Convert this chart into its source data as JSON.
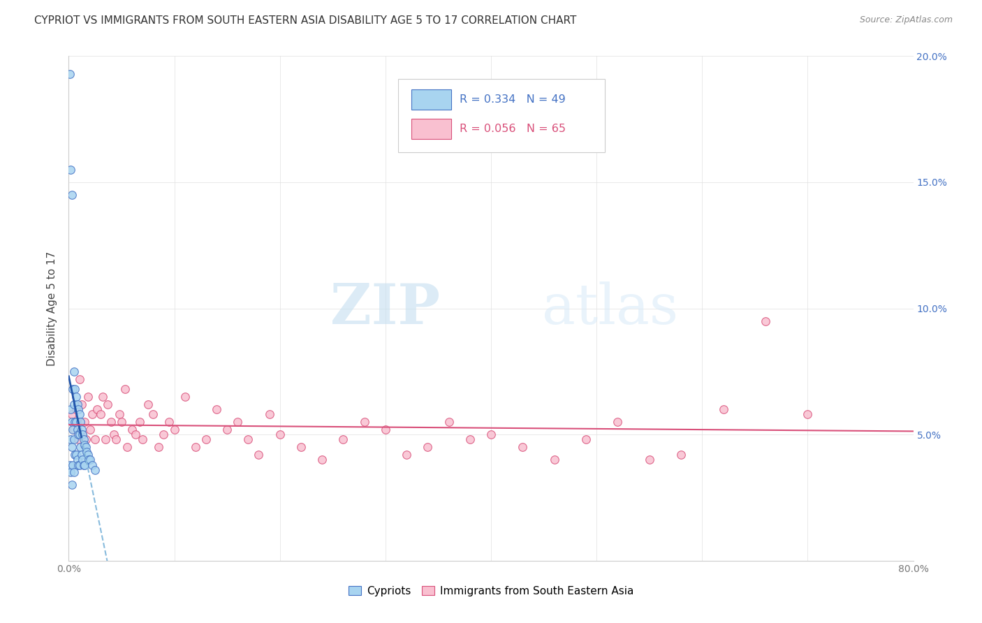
{
  "title": "CYPRIOT VS IMMIGRANTS FROM SOUTH EASTERN ASIA DISABILITY AGE 5 TO 17 CORRELATION CHART",
  "source": "Source: ZipAtlas.com",
  "ylabel": "Disability Age 5 to 17",
  "xlim": [
    0,
    0.8
  ],
  "ylim": [
    0,
    0.2
  ],
  "yticks": [
    0.0,
    0.05,
    0.1,
    0.15,
    0.2
  ],
  "ytick_labels_right": [
    "",
    "5.0%",
    "10.0%",
    "15.0%",
    "20.0%"
  ],
  "blue_R": 0.334,
  "blue_N": 49,
  "pink_R": 0.056,
  "pink_N": 65,
  "blue_color": "#a8d4f0",
  "blue_edge_color": "#4472c4",
  "blue_line_color": "#2255aa",
  "blue_dash_color": "#88bbdd",
  "pink_color": "#f9c0d0",
  "pink_edge_color": "#d9507a",
  "pink_line_color": "#d9507a",
  "watermark_zip": "ZIP",
  "watermark_atlas": "atlas",
  "blue_scatter_x": [
    0.001,
    0.001,
    0.002,
    0.002,
    0.002,
    0.002,
    0.003,
    0.003,
    0.003,
    0.003,
    0.004,
    0.004,
    0.004,
    0.005,
    0.005,
    0.005,
    0.005,
    0.006,
    0.006,
    0.006,
    0.007,
    0.007,
    0.007,
    0.008,
    0.008,
    0.008,
    0.009,
    0.009,
    0.009,
    0.01,
    0.01,
    0.01,
    0.011,
    0.011,
    0.012,
    0.012,
    0.013,
    0.013,
    0.014,
    0.014,
    0.015,
    0.015,
    0.016,
    0.017,
    0.018,
    0.019,
    0.02,
    0.022,
    0.025
  ],
  "blue_scatter_y": [
    0.193,
    0.038,
    0.155,
    0.06,
    0.048,
    0.035,
    0.145,
    0.055,
    0.045,
    0.03,
    0.068,
    0.052,
    0.038,
    0.075,
    0.062,
    0.048,
    0.035,
    0.068,
    0.055,
    0.042,
    0.065,
    0.055,
    0.042,
    0.062,
    0.052,
    0.04,
    0.06,
    0.05,
    0.038,
    0.058,
    0.05,
    0.038,
    0.055,
    0.045,
    0.052,
    0.042,
    0.05,
    0.04,
    0.048,
    0.038,
    0.046,
    0.038,
    0.045,
    0.043,
    0.042,
    0.04,
    0.04,
    0.038,
    0.036
  ],
  "pink_scatter_x": [
    0.003,
    0.005,
    0.007,
    0.008,
    0.009,
    0.01,
    0.012,
    0.013,
    0.015,
    0.016,
    0.018,
    0.02,
    0.022,
    0.025,
    0.027,
    0.03,
    0.032,
    0.035,
    0.037,
    0.04,
    0.043,
    0.045,
    0.048,
    0.05,
    0.053,
    0.055,
    0.06,
    0.063,
    0.067,
    0.07,
    0.075,
    0.08,
    0.085,
    0.09,
    0.095,
    0.1,
    0.11,
    0.12,
    0.13,
    0.14,
    0.15,
    0.16,
    0.17,
    0.18,
    0.19,
    0.2,
    0.22,
    0.24,
    0.26,
    0.28,
    0.3,
    0.32,
    0.34,
    0.36,
    0.38,
    0.4,
    0.43,
    0.46,
    0.49,
    0.52,
    0.55,
    0.58,
    0.62,
    0.66,
    0.7
  ],
  "pink_scatter_y": [
    0.058,
    0.052,
    0.06,
    0.055,
    0.048,
    0.072,
    0.062,
    0.05,
    0.055,
    0.048,
    0.065,
    0.052,
    0.058,
    0.048,
    0.06,
    0.058,
    0.065,
    0.048,
    0.062,
    0.055,
    0.05,
    0.048,
    0.058,
    0.055,
    0.068,
    0.045,
    0.052,
    0.05,
    0.055,
    0.048,
    0.062,
    0.058,
    0.045,
    0.05,
    0.055,
    0.052,
    0.065,
    0.045,
    0.048,
    0.06,
    0.052,
    0.055,
    0.048,
    0.042,
    0.058,
    0.05,
    0.045,
    0.04,
    0.048,
    0.055,
    0.052,
    0.042,
    0.045,
    0.055,
    0.048,
    0.05,
    0.045,
    0.04,
    0.048,
    0.055,
    0.04,
    0.042,
    0.06,
    0.095,
    0.058
  ]
}
